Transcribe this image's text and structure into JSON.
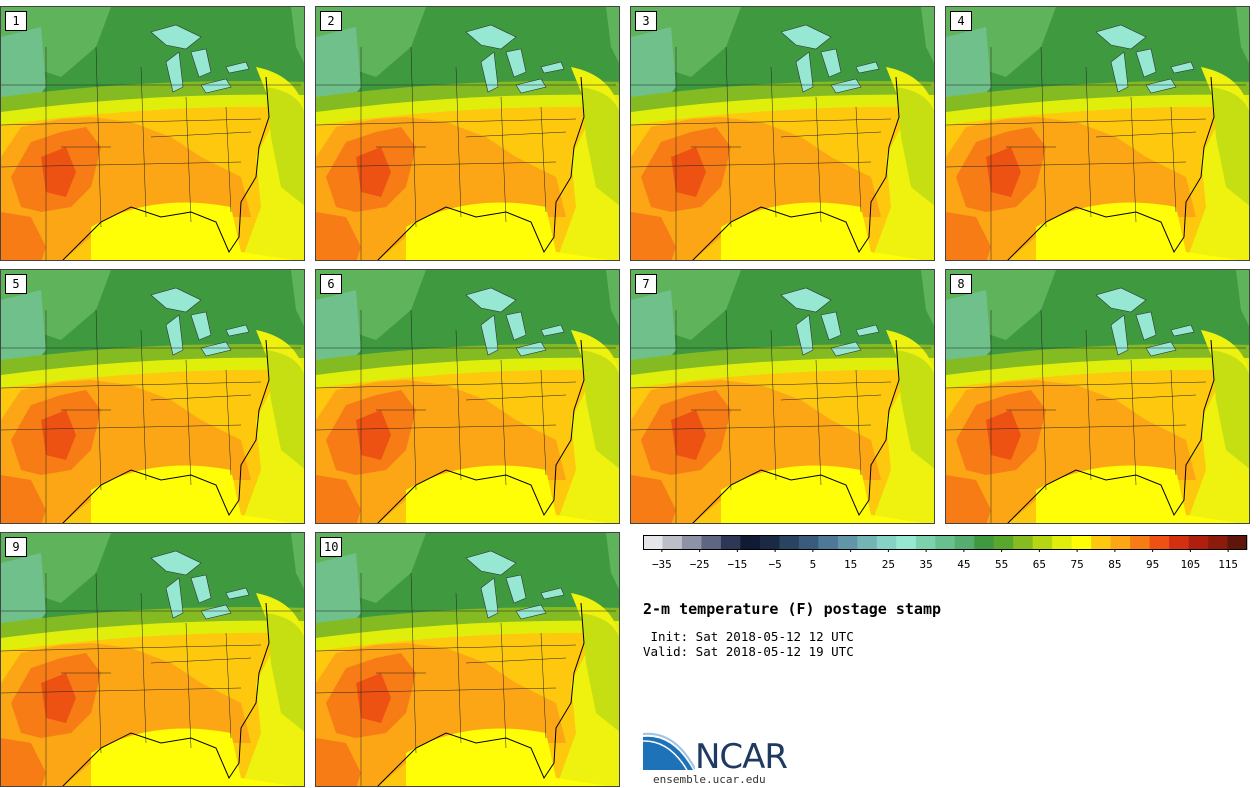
{
  "panels": [
    "1",
    "2",
    "3",
    "4",
    "5",
    "6",
    "7",
    "8",
    "9",
    "10"
  ],
  "colorbar": {
    "colors": [
      "#e4e6ea",
      "#bcbec8",
      "#8e92a6",
      "#5f6684",
      "#2e3756",
      "#101a33",
      "#1b2a44",
      "#2a4360",
      "#3a5c7c",
      "#4d7898",
      "#6195a8",
      "#74b4b4",
      "#86d2c4",
      "#97e8d2",
      "#7dd2ae",
      "#68c090",
      "#55ad70",
      "#41993f",
      "#59a72f",
      "#85bc21",
      "#b6d614",
      "#e0ee0b",
      "#fffe07",
      "#fdc80e",
      "#fca615",
      "#f77c16",
      "#ed5212",
      "#d23011",
      "#b01e0e",
      "#8c1b0c",
      "#5e160b"
    ],
    "ticks": [
      "−35",
      "−25",
      "−15",
      "−5",
      "5",
      "15",
      "25",
      "35",
      "45",
      "55",
      "65",
      "75",
      "85",
      "95",
      "105",
      "115"
    ],
    "range": [
      -40,
      120
    ]
  },
  "title": "2-m temperature (F) postage stamp",
  "init": " Init: Sat 2018-05-12 12 UTC",
  "valid": "Valid: Sat 2018-05-12 19 UTC",
  "logo": {
    "name": "NCAR",
    "url": "ensemble.ucar.edu"
  }
}
